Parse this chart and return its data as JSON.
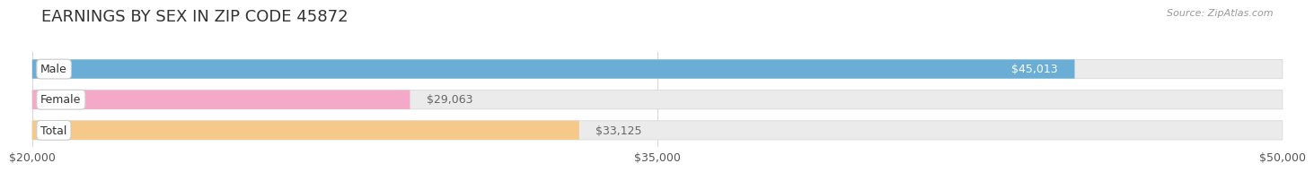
{
  "title": "EARNINGS BY SEX IN ZIP CODE 45872",
  "source_text": "Source: ZipAtlas.com",
  "categories": [
    "Male",
    "Female",
    "Total"
  ],
  "values": [
    45013,
    29063,
    33125
  ],
  "bar_colors": [
    "#6aaed6",
    "#f4a9c8",
    "#f5c98a"
  ],
  "bar_bg_color": "#ebebeb",
  "bar_border_color": "#d8d8d8",
  "label_in_colors": [
    "#ffffff",
    "#666666",
    "#666666"
  ],
  "x_min": 20000,
  "x_max": 50000,
  "x_ticks": [
    20000,
    35000,
    50000
  ],
  "x_tick_labels": [
    "$20,000",
    "$35,000",
    "$50,000"
  ],
  "title_fontsize": 13,
  "bar_label_fontsize": 9,
  "tick_fontsize": 9,
  "source_fontsize": 8,
  "bar_height": 0.62,
  "background_color": "#ffffff",
  "grid_color": "#d0d0d0"
}
